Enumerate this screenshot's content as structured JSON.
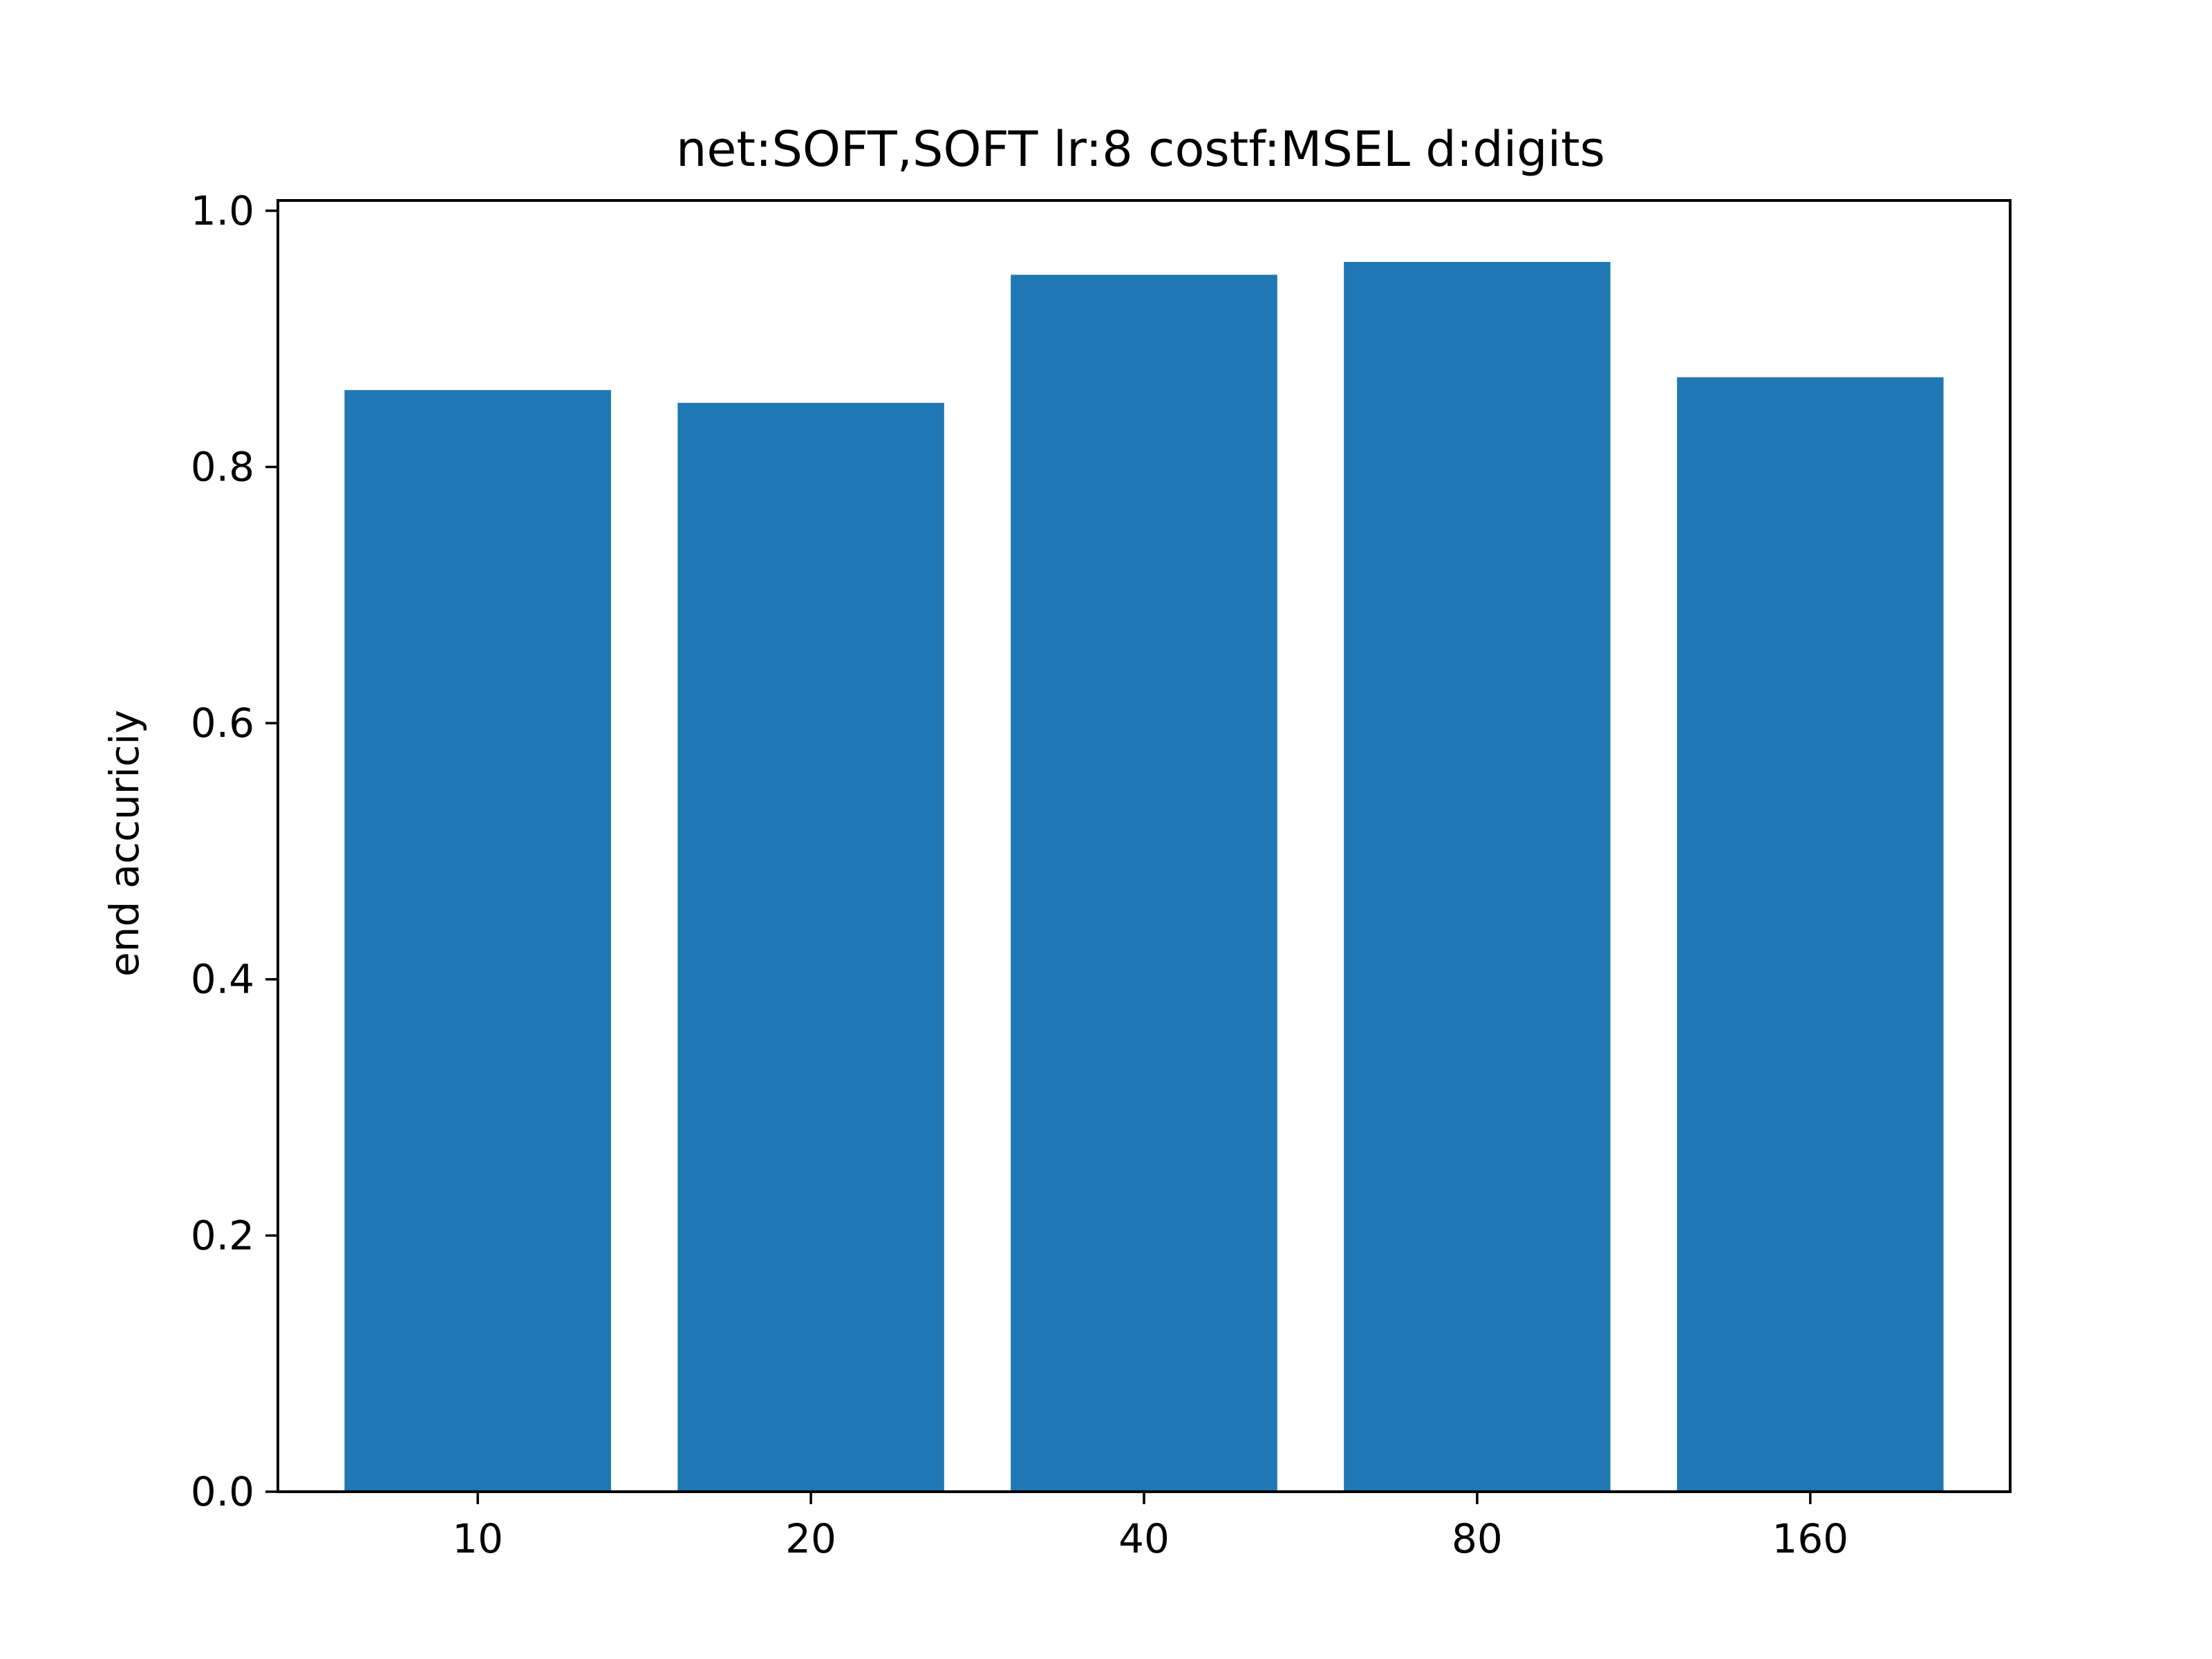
{
  "chart_data": {
    "type": "bar",
    "title": "net:SOFT,SOFT lr:8 costf:MSEL d:digits",
    "xlabel": "",
    "ylabel": "end accuriciy",
    "categories": [
      "10",
      "20",
      "40",
      "80",
      "160"
    ],
    "values": [
      0.86,
      0.85,
      0.95,
      0.96,
      0.87
    ],
    "ylim": [
      0.0,
      1.0
    ],
    "yticks": [
      0.0,
      0.2,
      0.4,
      0.6,
      0.8,
      1.0
    ],
    "ytick_labels": [
      "0.0",
      "0.2",
      "0.4",
      "0.6",
      "0.8",
      "1.0"
    ],
    "grid": false,
    "legend": "none",
    "bar_color": "#1f77b4"
  }
}
